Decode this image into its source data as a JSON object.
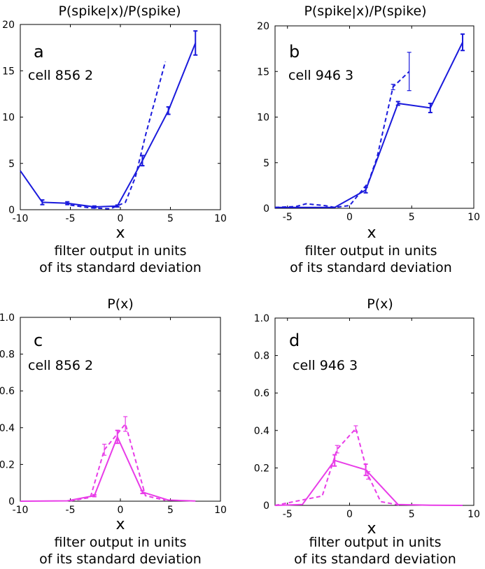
{
  "chart_data": [
    {
      "id": "a",
      "type": "line",
      "title": "P(spike|x)/P(spike)",
      "panel_label": "a",
      "cell_label": "cell 856 2",
      "xlabel": "x",
      "caption_line1": "filter output in units",
      "caption_line2": "of its standard deviation",
      "xlim": [
        -10,
        10
      ],
      "ylim": [
        0,
        20
      ],
      "xticks": [
        -10,
        -5,
        0,
        5,
        10
      ],
      "yticks": [
        0,
        5,
        10,
        15,
        20
      ],
      "xtick_labels": [
        "-10",
        "-5",
        "0",
        "5",
        "10"
      ],
      "ytick_labels": [
        "0",
        "5",
        "10",
        "15",
        "20"
      ],
      "color": "#1a1adc",
      "series": [
        {
          "name": "solid",
          "style": "solid",
          "x": [
            -10,
            -7.8,
            -5.3,
            -2.6,
            -0.3,
            2.2,
            4.8,
            7.5
          ],
          "y": [
            4.2,
            0.8,
            0.7,
            0.3,
            0.4,
            5.3,
            10.7,
            18.0
          ],
          "err": [
            0,
            0.25,
            0.15,
            0.1,
            0.1,
            0.55,
            0.4,
            1.3
          ]
        },
        {
          "name": "dashed",
          "style": "dashed",
          "x": [
            -5.0,
            -3.0,
            -1.0,
            0.5,
            1.5,
            2.5,
            3.5,
            4.5
          ],
          "y": [
            0.5,
            0.2,
            0.1,
            0.8,
            3.5,
            8.0,
            12.0,
            16.0
          ],
          "err": []
        }
      ]
    },
    {
      "id": "b",
      "type": "line",
      "title": "P(spike|x)/P(spike)",
      "panel_label": "b",
      "cell_label": "cell 946 3",
      "xlabel": "x",
      "caption_line1": "filter output in units",
      "caption_line2": "of its standard deviation",
      "xlim": [
        -6,
        10
      ],
      "ylim": [
        0,
        20
      ],
      "xticks": [
        -5,
        0,
        5,
        10
      ],
      "yticks": [
        0,
        5,
        10,
        15,
        20
      ],
      "xtick_labels": [
        "-5",
        "0",
        "5",
        "10"
      ],
      "ytick_labels": [
        "0",
        "5",
        "10",
        "15",
        "20"
      ],
      "color": "#1a1adc",
      "series": [
        {
          "name": "solid",
          "style": "solid",
          "x": [
            -6,
            -1.2,
            1.3,
            3.9,
            6.5,
            9.1
          ],
          "y": [
            0.1,
            0.1,
            2.0,
            11.5,
            11.0,
            18.2
          ],
          "err": [
            0,
            0,
            0.3,
            0.2,
            0.5,
            0.9
          ]
        },
        {
          "name": "dashed",
          "style": "dashed",
          "x": [
            -6,
            -4.3,
            -3.5,
            -2.0,
            -1.2,
            0,
            1.5,
            2.2,
            3.5,
            4.8
          ],
          "y": [
            0.1,
            0.2,
            0.5,
            0.3,
            0.1,
            0.3,
            2.8,
            5.5,
            13.3,
            15.0
          ],
          "err": [
            0,
            0,
            0,
            0,
            0,
            0,
            0,
            0,
            0.3,
            2.1
          ]
        }
      ]
    },
    {
      "id": "c",
      "type": "line",
      "title": "P(x)",
      "panel_label": "c",
      "cell_label": "cell 856 2",
      "xlabel": "x",
      "caption_line1": "filter output in units",
      "caption_line2": "of its standard deviation",
      "xlim": [
        -10,
        10
      ],
      "ylim": [
        0,
        1
      ],
      "xticks": [
        -10,
        -5,
        0,
        5,
        10
      ],
      "yticks": [
        0,
        0.2,
        0.4,
        0.6,
        0.8,
        1.0
      ],
      "xtick_labels": [
        "-10",
        "-5",
        "0",
        "5",
        "10"
      ],
      "ytick_labels": [
        "0",
        "0.2",
        "0.4",
        "0.6",
        "0.8",
        "1.0"
      ],
      "color": "#e83ce8",
      "series": [
        {
          "name": "solid",
          "style": "solid",
          "x": [
            -10,
            -5.3,
            -2.6,
            -0.3,
            2.2,
            4.8,
            7.5
          ],
          "y": [
            0,
            0.002,
            0.03,
            0.35,
            0.05,
            0.006,
            0.001
          ],
          "err": [
            0,
            0,
            0.005,
            0.035,
            0.008,
            0,
            0
          ]
        },
        {
          "name": "dashed",
          "style": "dashed",
          "x": [
            -5.0,
            -3.0,
            -1.6,
            0.5,
            2.5,
            4.5
          ],
          "y": [
            0.002,
            0.02,
            0.28,
            0.42,
            0.03,
            0.005
          ],
          "err": [
            0,
            0,
            0.03,
            0.04,
            0,
            0
          ]
        }
      ]
    },
    {
      "id": "d",
      "type": "line",
      "title": "P(x)",
      "panel_label": "d",
      "cell_label": "cell 946 3",
      "xlabel": "x",
      "caption_line1": "filter output in units",
      "caption_line2": "of its standard deviation",
      "xlim": [
        -6,
        10
      ],
      "ylim": [
        0,
        1
      ],
      "xticks": [
        -5,
        0,
        5,
        10
      ],
      "yticks": [
        0,
        0.2,
        0.4,
        0.6,
        0.8,
        1.0
      ],
      "xtick_labels": [
        "-5",
        "0",
        "5",
        "10"
      ],
      "ytick_labels": [
        "0",
        "0.2",
        "0.4",
        "0.6",
        "0.8",
        "1.0"
      ],
      "color": "#e83ce8",
      "series": [
        {
          "name": "solid",
          "style": "solid",
          "x": [
            -6,
            -3.8,
            -1.2,
            1.3,
            3.9,
            6.5,
            9.1
          ],
          "y": [
            0,
            0.005,
            0.24,
            0.19,
            0.005,
            0.001,
            0
          ],
          "err": [
            0,
            0,
            0.03,
            0.03,
            0,
            0,
            0
          ]
        },
        {
          "name": "dashed",
          "style": "dashed",
          "x": [
            -6,
            -2.2,
            -1.0,
            0.5,
            1.5,
            2.5,
            4.0
          ],
          "y": [
            0,
            0.05,
            0.3,
            0.41,
            0.16,
            0.02,
            0.002
          ],
          "err": [
            0,
            0,
            0.02,
            0.015,
            0.02,
            0,
            0
          ]
        }
      ]
    }
  ]
}
